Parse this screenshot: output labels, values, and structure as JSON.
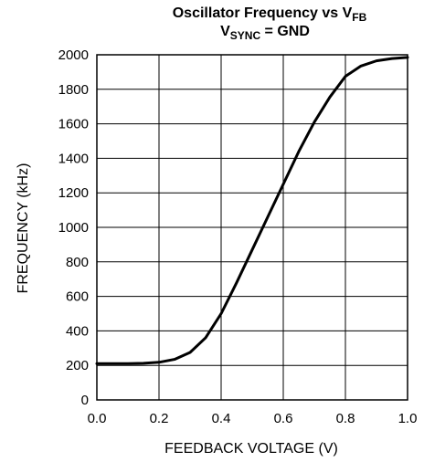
{
  "chart_data": {
    "type": "line",
    "title_main": "Oscillator Frequency vs V",
    "title_main_sub": "FB",
    "subtitle_main": "V",
    "subtitle_sub": "SYNC",
    "subtitle_rest": " = GND",
    "xlabel": "FEEDBACK VOLTAGE (V)",
    "ylabel": "FREQUENCY (kHz)",
    "xlim": [
      0,
      1.0
    ],
    "ylim": [
      0,
      2000
    ],
    "x_ticks": [
      "0.0",
      "0.2",
      "0.4",
      "0.6",
      "0.8",
      "1.0"
    ],
    "y_ticks": [
      "0",
      "200",
      "400",
      "600",
      "800",
      "1000",
      "1200",
      "1400",
      "1600",
      "1800",
      "2000"
    ],
    "grid": true,
    "line_color": "#000000",
    "series": [
      {
        "x": [
          0.0,
          0.05,
          0.1,
          0.15,
          0.2,
          0.25,
          0.3,
          0.35,
          0.4,
          0.45,
          0.5,
          0.55,
          0.6,
          0.65,
          0.7,
          0.75,
          0.8,
          0.85,
          0.9,
          0.95,
          1.0
        ],
        "y": [
          210,
          210,
          210,
          212,
          218,
          235,
          275,
          360,
          500,
          680,
          870,
          1060,
          1250,
          1440,
          1610,
          1755,
          1875,
          1935,
          1965,
          1978,
          1985
        ]
      }
    ]
  }
}
